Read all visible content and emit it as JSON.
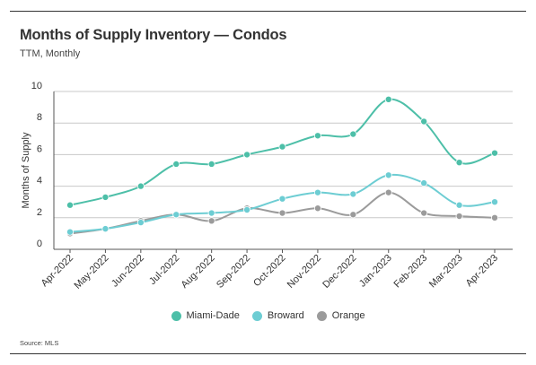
{
  "title": "Months of Supply Inventory — Condos",
  "subtitle": "TTM, Monthly",
  "source": "Source: MLS",
  "chart_data": {
    "type": "line",
    "categories": [
      "Apr-2022",
      "May-2022",
      "Jun-2022",
      "Jul-2022",
      "Aug-2022",
      "Sep-2022",
      "Oct-2022",
      "Nov-2022",
      "Dec-2022",
      "Jan-2023",
      "Feb-2023",
      "Mar-2023",
      "Apr-2023"
    ],
    "ylabel": "Months of Supply",
    "xlabel": "",
    "ylim": [
      0,
      10
    ],
    "yticks": [
      0,
      2,
      4,
      6,
      8,
      10
    ],
    "grid": true,
    "legend_position": "bottom",
    "series": [
      {
        "name": "Miami-Dade",
        "color": "#4dbfa8",
        "values": [
          2.8,
          3.3,
          4.0,
          5.4,
          5.4,
          6.0,
          6.5,
          7.2,
          7.3,
          9.5,
          8.1,
          5.5,
          6.1
        ]
      },
      {
        "name": "Broward",
        "color": "#6dcdd3",
        "values": [
          1.1,
          1.3,
          1.7,
          2.2,
          2.3,
          2.5,
          3.2,
          3.6,
          3.5,
          4.7,
          4.2,
          2.8,
          3.0
        ]
      },
      {
        "name": "Orange",
        "color": "#9b9b9b",
        "values": [
          1.0,
          1.3,
          1.8,
          2.2,
          1.8,
          2.6,
          2.3,
          2.6,
          2.2,
          3.6,
          2.3,
          2.1,
          2.0
        ]
      }
    ]
  }
}
